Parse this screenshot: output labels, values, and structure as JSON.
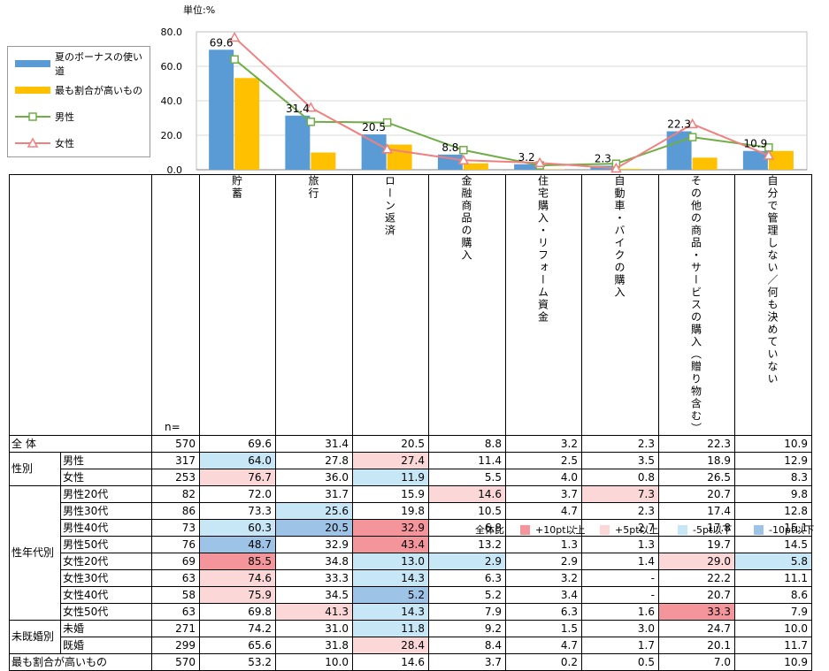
{
  "chart_data": {
    "type": "bar",
    "unit_label": "単位:%",
    "categories": [
      "貯蓄",
      "旅行",
      "ローン返済",
      "金融商品の購入",
      "住宅購入・リフォーム資金",
      "自動車・バイクの購入",
      "その他の商品・サービスの購入（贈り物含む）",
      "自分で管理しない／何も決めていない"
    ],
    "ylim": [
      0,
      80
    ],
    "yticks": [
      "0.0",
      "20.0",
      "40.0",
      "60.0",
      "80.0"
    ],
    "bar_series": [
      {
        "name": "夏のボーナスの使い道",
        "color": "#5b9bd5",
        "values": [
          69.6,
          31.4,
          20.5,
          8.8,
          3.2,
          2.3,
          22.3,
          10.9
        ]
      },
      {
        "name": "最も割合が高いもの",
        "color": "#ffc000",
        "values": [
          53.2,
          10.0,
          14.6,
          3.7,
          0.2,
          0.5,
          7.0,
          10.9
        ]
      }
    ],
    "line_series": [
      {
        "name": "男性",
        "color": "#70ad47",
        "marker": "square",
        "values": [
          64.0,
          27.8,
          27.4,
          11.4,
          2.5,
          3.5,
          18.9,
          12.9
        ]
      },
      {
        "name": "女性",
        "color": "#f0807f",
        "marker": "triangle",
        "values": [
          76.7,
          36.0,
          11.9,
          5.5,
          4.0,
          0.8,
          26.5,
          8.3
        ]
      }
    ],
    "data_labels": [
      "69.6",
      "31.4",
      "20.5",
      "8.8",
      "3.2",
      "2.3",
      "22.3",
      "10.9"
    ]
  },
  "table": {
    "n_label": "n=",
    "headers": [
      "貯蓄",
      "旅行",
      "ローン返済",
      "金融商品の購入",
      "住宅購入・リフォーム資金",
      "自動車・バイクの購入",
      "その他の商品・サービスの購入（贈り物含む）",
      "自分で管理しない／何も決めていない"
    ],
    "rows": [
      {
        "group": "全 体",
        "label": "",
        "n": "570",
        "cells": [
          [
            "69.6",
            ""
          ],
          [
            "31.4",
            ""
          ],
          [
            "20.5",
            ""
          ],
          [
            "8.8",
            ""
          ],
          [
            "3.2",
            ""
          ],
          [
            "2.3",
            ""
          ],
          [
            "22.3",
            ""
          ],
          [
            "10.9",
            ""
          ]
        ]
      },
      {
        "group": "性別",
        "label": "男性",
        "n": "317",
        "cells": [
          [
            "64.0",
            "m5"
          ],
          [
            "27.8",
            ""
          ],
          [
            "27.4",
            "p5"
          ],
          [
            "11.4",
            ""
          ],
          [
            "2.5",
            ""
          ],
          [
            "3.5",
            ""
          ],
          [
            "18.9",
            ""
          ],
          [
            "12.9",
            ""
          ]
        ]
      },
      {
        "group": "",
        "label": "女性",
        "n": "253",
        "cells": [
          [
            "76.7",
            "p5"
          ],
          [
            "36.0",
            ""
          ],
          [
            "11.9",
            "m5"
          ],
          [
            "5.5",
            ""
          ],
          [
            "4.0",
            ""
          ],
          [
            "0.8",
            ""
          ],
          [
            "26.5",
            ""
          ],
          [
            "8.3",
            ""
          ]
        ]
      },
      {
        "group": "性年代別",
        "label": "男性20代",
        "n": "82",
        "cells": [
          [
            "72.0",
            ""
          ],
          [
            "31.7",
            ""
          ],
          [
            "15.9",
            ""
          ],
          [
            "14.6",
            "p5"
          ],
          [
            "3.7",
            ""
          ],
          [
            "7.3",
            "p5"
          ],
          [
            "20.7",
            ""
          ],
          [
            "9.8",
            ""
          ]
        ]
      },
      {
        "group": "",
        "label": "男性30代",
        "n": "86",
        "cells": [
          [
            "73.3",
            ""
          ],
          [
            "25.6",
            "m5"
          ],
          [
            "19.8",
            ""
          ],
          [
            "10.5",
            ""
          ],
          [
            "4.7",
            ""
          ],
          [
            "2.3",
            ""
          ],
          [
            "17.4",
            ""
          ],
          [
            "12.8",
            ""
          ]
        ]
      },
      {
        "group": "",
        "label": "男性40代",
        "n": "73",
        "cells": [
          [
            "60.3",
            "m5"
          ],
          [
            "20.5",
            "m10"
          ],
          [
            "32.9",
            "p10"
          ],
          [
            "6.8",
            ""
          ],
          [
            "-",
            ""
          ],
          [
            "2.7",
            ""
          ],
          [
            "17.8",
            ""
          ],
          [
            "15.1",
            ""
          ]
        ]
      },
      {
        "group": "",
        "label": "男性50代",
        "n": "76",
        "cells": [
          [
            "48.7",
            "m10"
          ],
          [
            "32.9",
            ""
          ],
          [
            "43.4",
            "p10"
          ],
          [
            "13.2",
            ""
          ],
          [
            "1.3",
            ""
          ],
          [
            "1.3",
            ""
          ],
          [
            "19.7",
            ""
          ],
          [
            "14.5",
            ""
          ]
        ]
      },
      {
        "group": "",
        "label": "女性20代",
        "n": "69",
        "cells": [
          [
            "85.5",
            "p10"
          ],
          [
            "34.8",
            ""
          ],
          [
            "13.0",
            "m5"
          ],
          [
            "2.9",
            "m5"
          ],
          [
            "2.9",
            ""
          ],
          [
            "1.4",
            ""
          ],
          [
            "29.0",
            "p5"
          ],
          [
            "5.8",
            "m5"
          ]
        ]
      },
      {
        "group": "",
        "label": "女性30代",
        "n": "63",
        "cells": [
          [
            "74.6",
            "p5"
          ],
          [
            "33.3",
            ""
          ],
          [
            "14.3",
            "m5"
          ],
          [
            "6.3",
            ""
          ],
          [
            "3.2",
            ""
          ],
          [
            "-",
            ""
          ],
          [
            "22.2",
            ""
          ],
          [
            "11.1",
            ""
          ]
        ]
      },
      {
        "group": "",
        "label": "女性40代",
        "n": "58",
        "cells": [
          [
            "75.9",
            "p5"
          ],
          [
            "34.5",
            ""
          ],
          [
            "5.2",
            "m10"
          ],
          [
            "5.2",
            ""
          ],
          [
            "3.4",
            ""
          ],
          [
            "-",
            ""
          ],
          [
            "20.7",
            ""
          ],
          [
            "8.6",
            ""
          ]
        ]
      },
      {
        "group": "",
        "label": "女性50代",
        "n": "63",
        "cells": [
          [
            "69.8",
            ""
          ],
          [
            "41.3",
            "p5"
          ],
          [
            "14.3",
            "m5"
          ],
          [
            "7.9",
            ""
          ],
          [
            "6.3",
            ""
          ],
          [
            "1.6",
            ""
          ],
          [
            "33.3",
            "p10"
          ],
          [
            "7.9",
            ""
          ]
        ]
      },
      {
        "group": "未既婚別",
        "label": "未婚",
        "n": "271",
        "cells": [
          [
            "74.2",
            ""
          ],
          [
            "31.0",
            ""
          ],
          [
            "11.8",
            "m5"
          ],
          [
            "9.2",
            ""
          ],
          [
            "1.5",
            ""
          ],
          [
            "3.0",
            ""
          ],
          [
            "24.7",
            ""
          ],
          [
            "10.0",
            ""
          ]
        ]
      },
      {
        "group": "",
        "label": "既婚",
        "n": "299",
        "cells": [
          [
            "65.6",
            ""
          ],
          [
            "31.8",
            ""
          ],
          [
            "28.4",
            "p5"
          ],
          [
            "8.4",
            ""
          ],
          [
            "4.7",
            ""
          ],
          [
            "1.7",
            ""
          ],
          [
            "20.1",
            ""
          ],
          [
            "11.7",
            ""
          ]
        ]
      },
      {
        "group": "最も割合が高いもの",
        "label": "",
        "n": "570",
        "cells": [
          [
            "53.2",
            ""
          ],
          [
            "10.0",
            ""
          ],
          [
            "14.6",
            ""
          ],
          [
            "3.7",
            ""
          ],
          [
            "0.2",
            ""
          ],
          [
            "0.5",
            ""
          ],
          [
            "7.0",
            ""
          ],
          [
            "10.9",
            ""
          ]
        ]
      }
    ]
  },
  "footer": {
    "label": "全体比",
    "items": [
      {
        "label": "+10pt以上",
        "color": "#f4959b"
      },
      {
        "label": "+5pt以上",
        "color": "#fbd7d8"
      },
      {
        "label": "-5pt以下",
        "color": "#c7e7f6"
      },
      {
        "label": "-10pt以下",
        "color": "#9dc3e6"
      }
    ]
  }
}
